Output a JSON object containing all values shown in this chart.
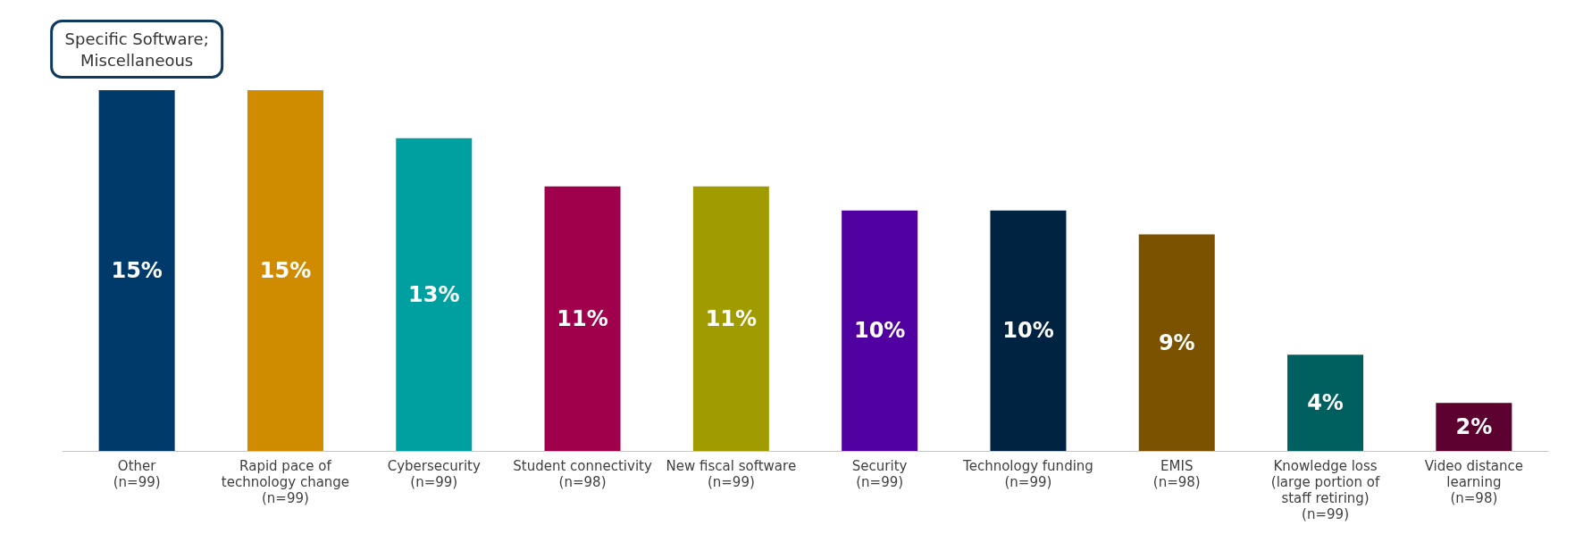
{
  "chart_data": {
    "type": "bar",
    "categories": [
      "Other\n(n=99)",
      "Rapid pace of\ntechnology change\n(n=99)",
      "Cybersecurity\n(n=99)",
      "Student connectivity\n(n=98)",
      "New fiscal software\n(n=99)",
      "Security\n(n=99)",
      "Technology funding\n(n=99)",
      "EMIS\n(n=98)",
      "Knowledge loss\n(large portion of\nstaff retiring)\n(n=99)",
      "Video distance\nlearning\n(n=98)"
    ],
    "values": [
      15,
      15,
      13,
      11,
      11,
      10,
      10,
      9,
      4,
      2
    ],
    "colors": [
      "#003a6b",
      "#d08c00",
      "#00a0a0",
      "#a0004b",
      "#a09c00",
      "#5000a0",
      "#002341",
      "#7a5200",
      "#006060",
      "#5c0030"
    ],
    "data_labels": true,
    "value_labels": [
      "15%",
      "15%",
      "13%",
      "11%",
      "11%",
      "10%",
      "10%",
      "9%",
      "4%",
      "2%"
    ],
    "annotations": [
      {
        "text": "Specific Software;\nMiscellaneous",
        "x": "Other\n(n=99)",
        "y": 15
      }
    ]
  }
}
